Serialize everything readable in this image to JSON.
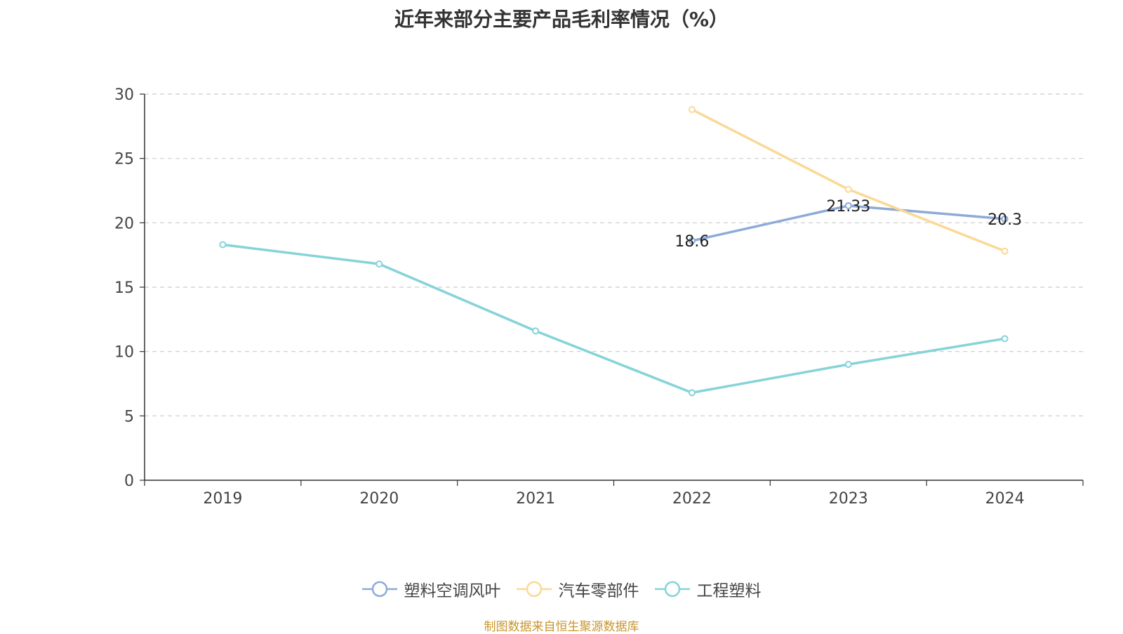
{
  "chart_data": {
    "type": "line",
    "title": "近年来部分主要产品毛利率情况（%）",
    "categories": [
      "2019",
      "2020",
      "2021",
      "2022",
      "2023",
      "2024"
    ],
    "ylim": [
      0,
      30
    ],
    "yticks": [
      "0",
      "5",
      "10",
      "15",
      "20",
      "25",
      "30"
    ],
    "grid": true,
    "legend_position": "bottom",
    "series": [
      {
        "name": "塑料空调风叶",
        "color": "#8eaad8",
        "values": [
          null,
          null,
          null,
          18.6,
          21.33,
          20.3
        ],
        "labels": [
          "",
          "",
          "",
          "18.6",
          "21.33",
          "20.3"
        ]
      },
      {
        "name": "汽车零部件",
        "color": "#fad996",
        "values": [
          null,
          null,
          null,
          28.8,
          22.6,
          17.8
        ],
        "labels": [
          "",
          "",
          "",
          "",
          "",
          ""
        ]
      },
      {
        "name": "工程塑料",
        "color": "#86d3d8",
        "values": [
          18.3,
          16.8,
          11.6,
          6.8,
          9.0,
          11.0
        ],
        "labels": [
          "",
          "",
          "",
          "",
          "",
          ""
        ]
      }
    ]
  },
  "source_text": "制图数据来自恒生聚源数据库",
  "source_color": "#c8962e"
}
